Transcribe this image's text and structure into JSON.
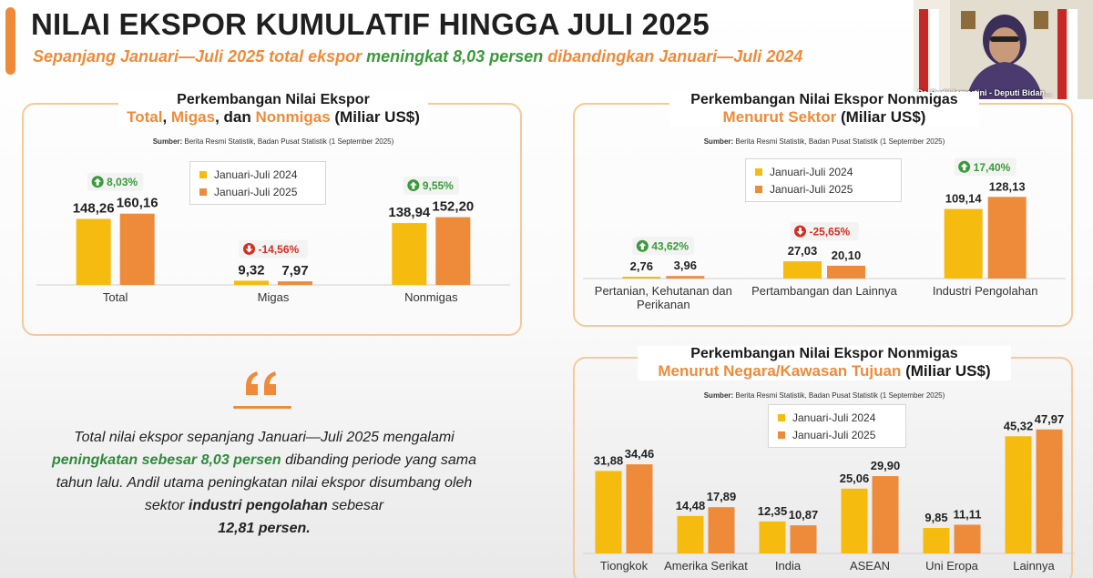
{
  "colors": {
    "y2024": "#f5bb0f",
    "y2025": "#ee8b3a",
    "accent": "#ee8b3a",
    "green": "#3a9a3a",
    "red": "#d62d20",
    "dark": "#1f1f1f"
  },
  "header": {
    "title": "NILAI EKSPOR KUMULATIF HINGGA JULI 2025",
    "subtitle_a": "Sepanjang Januari—Juli 2025 total ekspor ",
    "subtitle_b": "meningkat 8,03 persen",
    "subtitle_c": " dibandingkan Januari—Juli 2024"
  },
  "video": {
    "caption": "Dr. Pudji Ismartini - Deputi Bidan..."
  },
  "source_note": {
    "label": "Sumber:",
    "text": " Berita Resmi Statistik, Badan Pusat Statistik (1 September 2025)"
  },
  "legend": {
    "y2024": "Januari-Juli 2024",
    "y2025": "Januari-Juli 2025"
  },
  "panel1": {
    "line1": "Perkembangan Nilai Ekspor",
    "l2_total": "Total",
    "l2_sep1": ", ",
    "l2_migas": "Migas",
    "l2_sep2": ", dan ",
    "l2_nonmigas": "Nonmigas",
    "l2_unit": " (Miliar US$)"
  },
  "panel2": {
    "line1": "Perkembangan Nilai Ekspor Nonmigas",
    "l2_accent": "Menurut Sektor",
    "l2_unit": " (Miliar US$)"
  },
  "panel3": {
    "line1": "Perkembangan Nilai Ekspor Nonmigas",
    "l2_accent": "Menurut Negara/Kawasan Tujuan",
    "l2_unit": " (Miliar US$)"
  },
  "quote": {
    "p1": "Total nilai ekspor sepanjang Januari—Juli 2025 mengalami",
    "p2": "peningkatan sebesar 8,03 persen",
    "p3": " dibanding periode yang sama tahun lalu. Andil utama peningkatan nilai ekspor disumbang oleh sektor ",
    "p4": "industri pengolahan",
    "p5": " sebesar",
    "p6": "12,81 persen."
  },
  "chart_data": [
    {
      "type": "bar",
      "title": "Perkembangan Nilai Ekspor Total, Migas, dan Nonmigas (Miliar US$)",
      "categories": [
        "Total",
        "Migas",
        "Nonmigas"
      ],
      "series": [
        {
          "name": "Januari-Juli 2024",
          "values": [
            148.26,
            9.32,
            138.94
          ],
          "labels": [
            "148,26",
            "9,32",
            "138,94"
          ]
        },
        {
          "name": "Januari-Juli 2025",
          "values": [
            160.16,
            7.97,
            152.2
          ],
          "labels": [
            "160,16",
            "7,97",
            "152,20"
          ]
        }
      ],
      "changes": [
        {
          "label": "8,03%",
          "dir": "up"
        },
        {
          "label": "-14,56%",
          "dir": "down"
        },
        {
          "label": "9,55%",
          "dir": "up"
        }
      ]
    },
    {
      "type": "bar",
      "title": "Perkembangan Nilai Ekspor Nonmigas Menurut Sektor (Miliar US$)",
      "categories": [
        "Pertanian, Kehutanan dan Perikanan",
        "Pertambangan dan Lainnya",
        "Industri Pengolahan"
      ],
      "category_lines": [
        [
          "Pertanian, Kehutanan dan",
          "Perikanan"
        ],
        [
          "Pertambangan dan Lainnya"
        ],
        [
          "Industri Pengolahan"
        ]
      ],
      "series": [
        {
          "name": "Januari-Juli 2024",
          "values": [
            2.76,
            27.03,
            109.14
          ],
          "labels": [
            "2,76",
            "27,03",
            "109,14"
          ]
        },
        {
          "name": "Januari-Juli 2025",
          "values": [
            3.96,
            20.1,
            128.13
          ],
          "labels": [
            "3,96",
            "20,10",
            "128,13"
          ]
        }
      ],
      "changes": [
        {
          "label": "43,62%",
          "dir": "up"
        },
        {
          "label": "-25,65%",
          "dir": "down"
        },
        {
          "label": "17,40%",
          "dir": "up"
        }
      ]
    },
    {
      "type": "bar",
      "title": "Perkembangan Nilai Ekspor Nonmigas Menurut Negara/Kawasan Tujuan (Miliar US$)",
      "categories": [
        "Tiongkok",
        "Amerika Serikat",
        "India",
        "ASEAN",
        "Uni Eropa",
        "Lainnya"
      ],
      "series": [
        {
          "name": "Januari-Juli 2024",
          "values": [
            31.88,
            14.48,
            12.35,
            25.06,
            9.85,
            45.32
          ],
          "labels": [
            "31,88",
            "14,48",
            "12,35",
            "25,06",
            "9,85",
            "45,32"
          ]
        },
        {
          "name": "Januari-Juli 2025",
          "values": [
            34.46,
            17.89,
            10.87,
            29.9,
            11.11,
            47.97
          ],
          "labels": [
            "34,46",
            "17,89",
            "10,87",
            "29,90",
            "11,11",
            "47,97"
          ]
        }
      ]
    }
  ]
}
